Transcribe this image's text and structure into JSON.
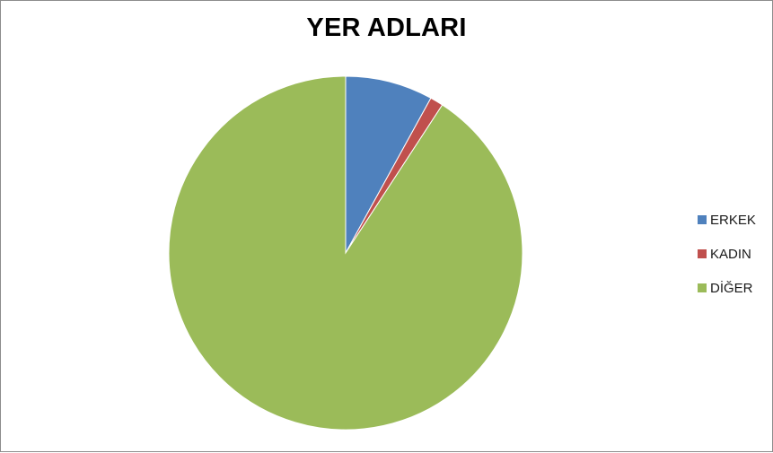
{
  "chart_data": {
    "type": "pie",
    "title": "YER ADLARI",
    "categories": [
      "ERKEK",
      "KADIN",
      "DİĞER"
    ],
    "values": [
      8,
      1.2,
      90.8
    ],
    "colors": [
      "#4F81BD",
      "#C0504D",
      "#9BBB59"
    ],
    "start_angle_deg": 0,
    "direction": "clockwise",
    "legend_position": "right"
  }
}
